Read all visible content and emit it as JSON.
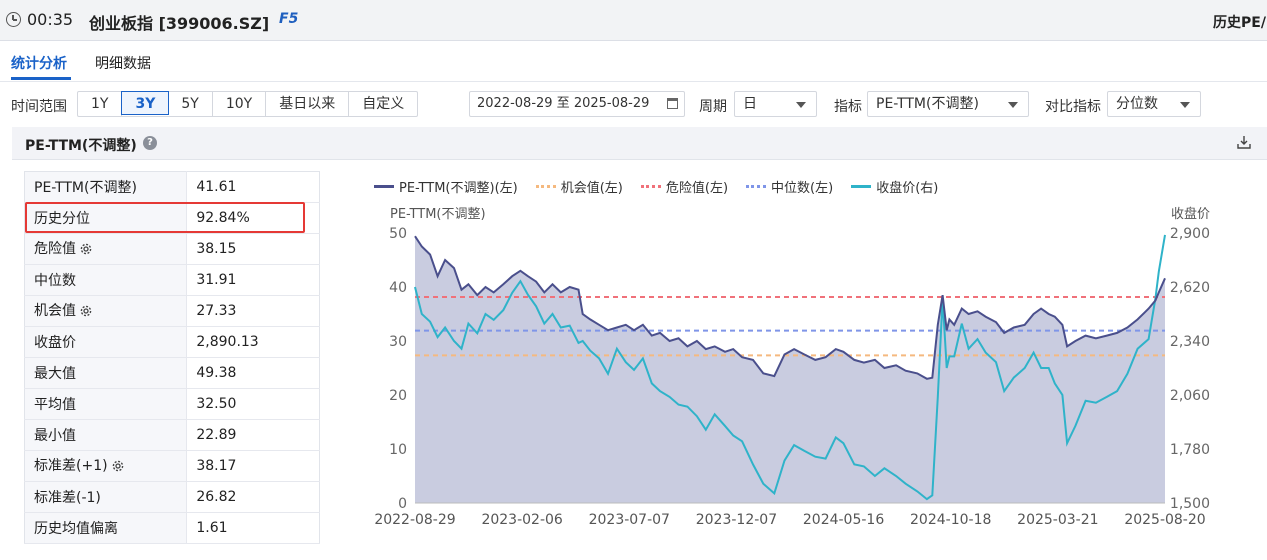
{
  "header": {
    "time": "00:35",
    "title": "创业板指 [399006.SZ]",
    "hotkey": "F5",
    "right_title": "历史PE/"
  },
  "tabs": [
    {
      "label": "统计分析",
      "active": true
    },
    {
      "label": "明细数据",
      "active": false
    }
  ],
  "filters": {
    "range_label": "时间范围",
    "range_options": [
      "1Y",
      "3Y",
      "5Y",
      "10Y",
      "基日以来",
      "自定义"
    ],
    "range_selected": "3Y",
    "date_range": "2022-08-29 至 2025-08-29",
    "period_label": "周期",
    "period_value": "日",
    "indicator_label": "指标",
    "indicator_value": "PE-TTM(不调整)",
    "compare_label": "对比指标",
    "compare_value": "分位数"
  },
  "panel": {
    "title": "PE-TTM(不调整)",
    "help_icon": "question-icon",
    "download_icon": "download-icon"
  },
  "stats": [
    {
      "key": "PE-TTM(不调整)",
      "value": "41.61",
      "gear": false
    },
    {
      "key": "历史分位",
      "value": "92.84%",
      "gear": false,
      "highlight": true
    },
    {
      "key": "危险值",
      "value": "38.15",
      "gear": true
    },
    {
      "key": "中位数",
      "value": "31.91",
      "gear": false
    },
    {
      "key": "机会值",
      "value": "27.33",
      "gear": true
    },
    {
      "key": "收盘价",
      "value": "2,890.13",
      "gear": false
    },
    {
      "key": "最大值",
      "value": "49.38",
      "gear": false
    },
    {
      "key": "平均值",
      "value": "32.50",
      "gear": false
    },
    {
      "key": "最小值",
      "value": "22.89",
      "gear": false
    },
    {
      "key": "标准差(+1)",
      "value": "38.17",
      "gear": true
    },
    {
      "key": "标准差(-1)",
      "value": "26.82",
      "gear": false
    },
    {
      "key": "历史均值偏离",
      "value": "1.61",
      "gear": false
    }
  ],
  "colors": {
    "accent": "#1a62c8",
    "pe_line": "#4a4f8c",
    "pe_fill": "#b7bbd6",
    "opportunity": "#f5b97f",
    "danger": "#f0717a",
    "median": "#7f95e8",
    "close": "#2fb3c9",
    "highlight_border": "#e53935"
  },
  "chart_data": {
    "type": "line",
    "legend": [
      "PE-TTM(不调整)(左)",
      "机会值(左)",
      "危险值(左)",
      "中位数(左)",
      "收盘价(右)"
    ],
    "left_axis_label": "PE-TTM(不调整)",
    "right_axis_label": "收盘价",
    "left_ticks": [
      "0",
      "10",
      "20",
      "30",
      "40",
      "50"
    ],
    "right_ticks": [
      "1,500",
      "1,780",
      "2,060",
      "2,340",
      "2,620",
      "2,900"
    ],
    "x_ticks": [
      "2022-08-29",
      "2023-02-06",
      "2023-07-07",
      "2023-12-07",
      "2024-05-16",
      "2024-10-18",
      "2025-03-21",
      "2025-08-20"
    ],
    "ylim_left": [
      0,
      50
    ],
    "ylim_right": [
      1500,
      2900
    ],
    "reference_lines": {
      "opportunity": 27.33,
      "danger": 38.15,
      "median": 31.91
    },
    "series": [
      {
        "name": "PE-TTM(不调整)(左)",
        "axis": "left",
        "points": [
          [
            "2022-08-29",
            49.4
          ],
          [
            "2022-09-08",
            47.5
          ],
          [
            "2022-09-20",
            46.0
          ],
          [
            "2022-10-01",
            42.0
          ],
          [
            "2022-10-12",
            45.0
          ],
          [
            "2022-10-25",
            43.5
          ],
          [
            "2022-11-05",
            39.5
          ],
          [
            "2022-11-15",
            40.5
          ],
          [
            "2022-11-28",
            38.5
          ],
          [
            "2022-12-10",
            40.0
          ],
          [
            "2022-12-22",
            39.0
          ],
          [
            "2023-01-05",
            40.5
          ],
          [
            "2023-01-18",
            42.0
          ],
          [
            "2023-01-30",
            43.0
          ],
          [
            "2023-02-10",
            42.0
          ],
          [
            "2023-02-22",
            41.0
          ],
          [
            "2023-03-06",
            39.0
          ],
          [
            "2023-03-18",
            40.5
          ],
          [
            "2023-03-30",
            39.0
          ],
          [
            "2023-04-12",
            40.0
          ],
          [
            "2023-04-25",
            39.5
          ],
          [
            "2023-05-01",
            35.0
          ],
          [
            "2023-05-12",
            34.0
          ],
          [
            "2023-05-25",
            33.0
          ],
          [
            "2023-06-07",
            32.0
          ],
          [
            "2023-06-20",
            32.5
          ],
          [
            "2023-07-03",
            33.0
          ],
          [
            "2023-07-15",
            32.0
          ],
          [
            "2023-07-28",
            33.0
          ],
          [
            "2023-08-10",
            31.0
          ],
          [
            "2023-08-22",
            31.5
          ],
          [
            "2023-09-05",
            30.0
          ],
          [
            "2023-09-18",
            30.5
          ],
          [
            "2023-10-01",
            29.0
          ],
          [
            "2023-10-15",
            30.0
          ],
          [
            "2023-10-28",
            28.5
          ],
          [
            "2023-11-10",
            29.0
          ],
          [
            "2023-11-25",
            28.0
          ],
          [
            "2023-12-07",
            28.5
          ],
          [
            "2023-12-20",
            27.0
          ],
          [
            "2024-01-05",
            26.5
          ],
          [
            "2024-01-20",
            24.0
          ],
          [
            "2024-02-05",
            23.5
          ],
          [
            "2024-02-20",
            27.5
          ],
          [
            "2024-03-05",
            28.5
          ],
          [
            "2024-03-20",
            27.5
          ],
          [
            "2024-04-05",
            26.5
          ],
          [
            "2024-04-20",
            27.0
          ],
          [
            "2024-05-05",
            28.5
          ],
          [
            "2024-05-16",
            28.0
          ],
          [
            "2024-06-01",
            26.5
          ],
          [
            "2024-06-15",
            26.0
          ],
          [
            "2024-07-01",
            26.5
          ],
          [
            "2024-07-15",
            25.0
          ],
          [
            "2024-08-01",
            25.5
          ],
          [
            "2024-08-15",
            24.5
          ],
          [
            "2024-09-01",
            24.0
          ],
          [
            "2024-09-15",
            23.0
          ],
          [
            "2024-09-23",
            23.2
          ],
          [
            "2024-10-01",
            33.0
          ],
          [
            "2024-10-08",
            38.5
          ],
          [
            "2024-10-14",
            32.0
          ],
          [
            "2024-10-18",
            34.0
          ],
          [
            "2024-10-25",
            33.0
          ],
          [
            "2024-11-05",
            36.0
          ],
          [
            "2024-11-15",
            35.0
          ],
          [
            "2024-11-28",
            35.5
          ],
          [
            "2024-12-10",
            34.5
          ],
          [
            "2024-12-25",
            33.5
          ],
          [
            "2025-01-06",
            31.5
          ],
          [
            "2025-01-20",
            32.5
          ],
          [
            "2025-02-05",
            33.0
          ],
          [
            "2025-02-18",
            35.0
          ],
          [
            "2025-03-01",
            36.0
          ],
          [
            "2025-03-12",
            35.0
          ],
          [
            "2025-03-21",
            34.5
          ],
          [
            "2025-04-01",
            33.0
          ],
          [
            "2025-04-08",
            29.0
          ],
          [
            "2025-04-20",
            30.0
          ],
          [
            "2025-05-05",
            31.0
          ],
          [
            "2025-05-20",
            30.5
          ],
          [
            "2025-06-05",
            31.0
          ],
          [
            "2025-06-20",
            31.5
          ],
          [
            "2025-07-05",
            32.5
          ],
          [
            "2025-07-20",
            34.0
          ],
          [
            "2025-08-05",
            36.0
          ],
          [
            "2025-08-15",
            37.5
          ],
          [
            "2025-08-20",
            39.0
          ],
          [
            "2025-08-29",
            41.61
          ]
        ]
      },
      {
        "name": "收盘价(右)",
        "axis": "right",
        "points": [
          [
            "2022-08-29",
            2620
          ],
          [
            "2022-09-08",
            2480
          ],
          [
            "2022-09-20",
            2440
          ],
          [
            "2022-10-01",
            2360
          ],
          [
            "2022-10-12",
            2410
          ],
          [
            "2022-10-25",
            2340
          ],
          [
            "2022-11-05",
            2300
          ],
          [
            "2022-11-15",
            2430
          ],
          [
            "2022-11-28",
            2380
          ],
          [
            "2022-12-10",
            2480
          ],
          [
            "2022-12-22",
            2450
          ],
          [
            "2023-01-05",
            2500
          ],
          [
            "2023-01-18",
            2590
          ],
          [
            "2023-01-30",
            2650
          ],
          [
            "2023-02-10",
            2580
          ],
          [
            "2023-02-22",
            2520
          ],
          [
            "2023-03-06",
            2430
          ],
          [
            "2023-03-18",
            2480
          ],
          [
            "2023-03-30",
            2410
          ],
          [
            "2023-04-12",
            2420
          ],
          [
            "2023-04-25",
            2330
          ],
          [
            "2023-05-01",
            2340
          ],
          [
            "2023-05-12",
            2290
          ],
          [
            "2023-05-25",
            2250
          ],
          [
            "2023-06-07",
            2170
          ],
          [
            "2023-06-20",
            2300
          ],
          [
            "2023-07-03",
            2230
          ],
          [
            "2023-07-15",
            2190
          ],
          [
            "2023-07-28",
            2250
          ],
          [
            "2023-08-10",
            2120
          ],
          [
            "2023-08-22",
            2080
          ],
          [
            "2023-09-05",
            2050
          ],
          [
            "2023-09-18",
            2010
          ],
          [
            "2023-10-01",
            2000
          ],
          [
            "2023-10-15",
            1950
          ],
          [
            "2023-10-28",
            1880
          ],
          [
            "2023-11-10",
            1960
          ],
          [
            "2023-11-25",
            1900
          ],
          [
            "2023-12-07",
            1850
          ],
          [
            "2023-12-20",
            1820
          ],
          [
            "2024-01-05",
            1700
          ],
          [
            "2024-01-20",
            1600
          ],
          [
            "2024-02-05",
            1550
          ],
          [
            "2024-02-20",
            1720
          ],
          [
            "2024-03-05",
            1800
          ],
          [
            "2024-03-20",
            1770
          ],
          [
            "2024-04-05",
            1740
          ],
          [
            "2024-04-20",
            1730
          ],
          [
            "2024-05-05",
            1840
          ],
          [
            "2024-05-16",
            1810
          ],
          [
            "2024-06-01",
            1700
          ],
          [
            "2024-06-15",
            1690
          ],
          [
            "2024-07-01",
            1640
          ],
          [
            "2024-07-15",
            1680
          ],
          [
            "2024-08-01",
            1640
          ],
          [
            "2024-08-15",
            1600
          ],
          [
            "2024-09-01",
            1560
          ],
          [
            "2024-09-15",
            1520
          ],
          [
            "2024-09-23",
            1540
          ],
          [
            "2024-10-01",
            2050
          ],
          [
            "2024-10-08",
            2560
          ],
          [
            "2024-10-14",
            2200
          ],
          [
            "2024-10-18",
            2260
          ],
          [
            "2024-10-25",
            2260
          ],
          [
            "2024-11-05",
            2430
          ],
          [
            "2024-11-15",
            2300
          ],
          [
            "2024-11-28",
            2350
          ],
          [
            "2024-12-10",
            2280
          ],
          [
            "2024-12-25",
            2230
          ],
          [
            "2025-01-06",
            2080
          ],
          [
            "2025-01-20",
            2150
          ],
          [
            "2025-02-05",
            2200
          ],
          [
            "2025-02-18",
            2280
          ],
          [
            "2025-03-01",
            2200
          ],
          [
            "2025-03-12",
            2200
          ],
          [
            "2025-03-21",
            2120
          ],
          [
            "2025-04-01",
            2060
          ],
          [
            "2025-04-08",
            1810
          ],
          [
            "2025-04-20",
            1900
          ],
          [
            "2025-05-05",
            2030
          ],
          [
            "2025-05-20",
            2020
          ],
          [
            "2025-06-05",
            2050
          ],
          [
            "2025-06-20",
            2080
          ],
          [
            "2025-07-05",
            2170
          ],
          [
            "2025-07-20",
            2300
          ],
          [
            "2025-08-05",
            2350
          ],
          [
            "2025-08-15",
            2560
          ],
          [
            "2025-08-20",
            2700
          ],
          [
            "2025-08-29",
            2890
          ]
        ]
      }
    ]
  }
}
